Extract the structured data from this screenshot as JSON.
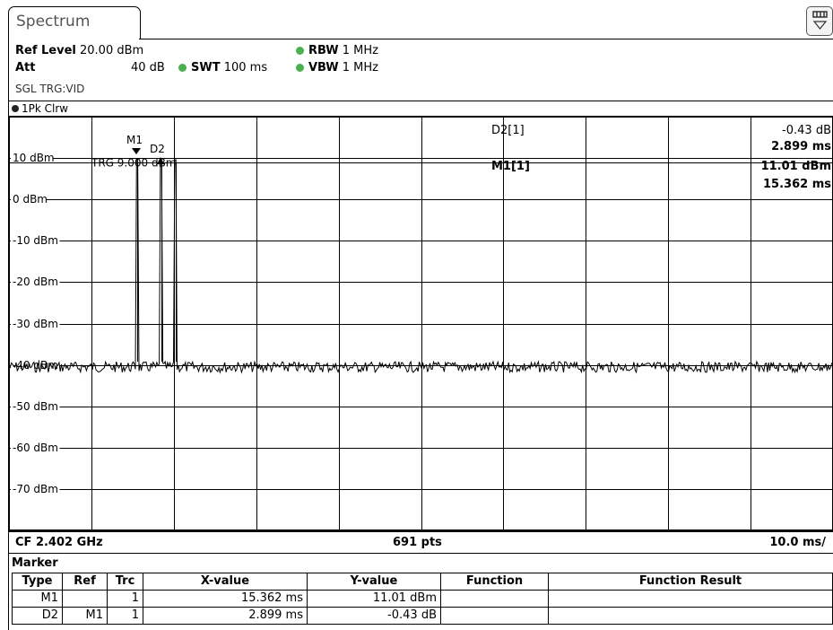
{
  "tab": {
    "title": "Spectrum"
  },
  "settings": {
    "ref_level_label": "Ref Level",
    "ref_level_value": "20.00 dBm",
    "att_label": "Att",
    "att_value": "40 dB",
    "swt_label": "SWT",
    "swt_value": "100 ms",
    "rbw_label": "RBW",
    "rbw_value": "1 MHz",
    "vbw_label": "VBW",
    "vbw_value": "1 MHz",
    "mode": "SGL TRG:VID"
  },
  "trace_label": "1Pk Clrw",
  "plot": {
    "y_labels": [
      "10 dBm",
      "0 dBm",
      "-10 dBm",
      "-20 dBm",
      "-30 dBm",
      "-40 dBm",
      "-50 dBm",
      "-60 dBm",
      "-70 dBm"
    ],
    "trigger_label": "TRG  9.000 dBm",
    "marker_m1": "M1",
    "marker_d2": "D2",
    "d2_readout_name": "D2[1]",
    "d2_readout_value": "-0.43 dB",
    "d2_readout_time": "2.899 ms",
    "m1_readout_name": "M1[1]",
    "m1_readout_value": "11.01 dBm",
    "m1_readout_time": "15.362 ms"
  },
  "footer": {
    "cf": "CF 2.402 GHz",
    "pts": "691 pts",
    "span": "10.0 ms/"
  },
  "marker_table": {
    "title": "Marker",
    "headers": [
      "Type",
      "Ref",
      "Trc",
      "X-value",
      "Y-value",
      "Function",
      "Function Result"
    ],
    "rows": [
      [
        "M1",
        "",
        "1",
        "15.362 ms",
        "11.01 dBm",
        "",
        ""
      ],
      [
        "D2",
        "M1",
        "1",
        "2.899 ms",
        "-0.43 dB",
        "",
        ""
      ]
    ]
  },
  "colors": {
    "status_dot": "#4caf50",
    "trace": "#000000",
    "grid": "#000000"
  },
  "icons": {
    "menu": "menu-expand-icon"
  }
}
